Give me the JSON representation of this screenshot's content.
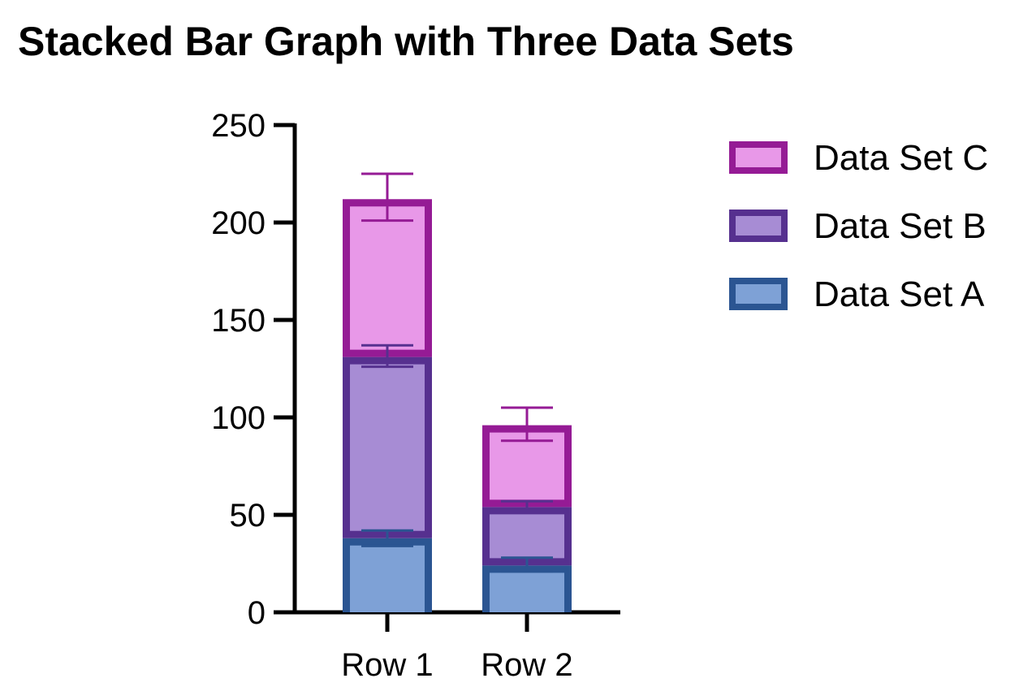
{
  "chart_data": {
    "type": "bar",
    "stacked": true,
    "title": "Stacked Bar Graph with Three Data Sets",
    "xlabel": "",
    "ylabel": "",
    "categories": [
      "Row 1",
      "Row 2"
    ],
    "ylim": [
      0,
      250
    ],
    "yticks": [
      0,
      50,
      100,
      150,
      200,
      250
    ],
    "grid": false,
    "legend_position": "right",
    "series": [
      {
        "name": "Data Set A",
        "values": [
          38,
          24
        ],
        "error_low": [
          34,
          21
        ],
        "error_high": [
          42,
          28
        ],
        "fill": "#7ea1d6",
        "stroke": "#2b5592"
      },
      {
        "name": "Data Set B",
        "values": [
          93,
          30
        ],
        "error_low": [
          126,
          52
        ],
        "error_high": [
          137,
          57
        ],
        "fill": "#a78cd4",
        "stroke": "#56308f"
      },
      {
        "name": "Data Set C",
        "values": [
          81,
          42
        ],
        "error_low": [
          201,
          88
        ],
        "error_high": [
          225,
          105
        ],
        "fill": "#e898e8",
        "stroke": "#951b95"
      }
    ]
  }
}
